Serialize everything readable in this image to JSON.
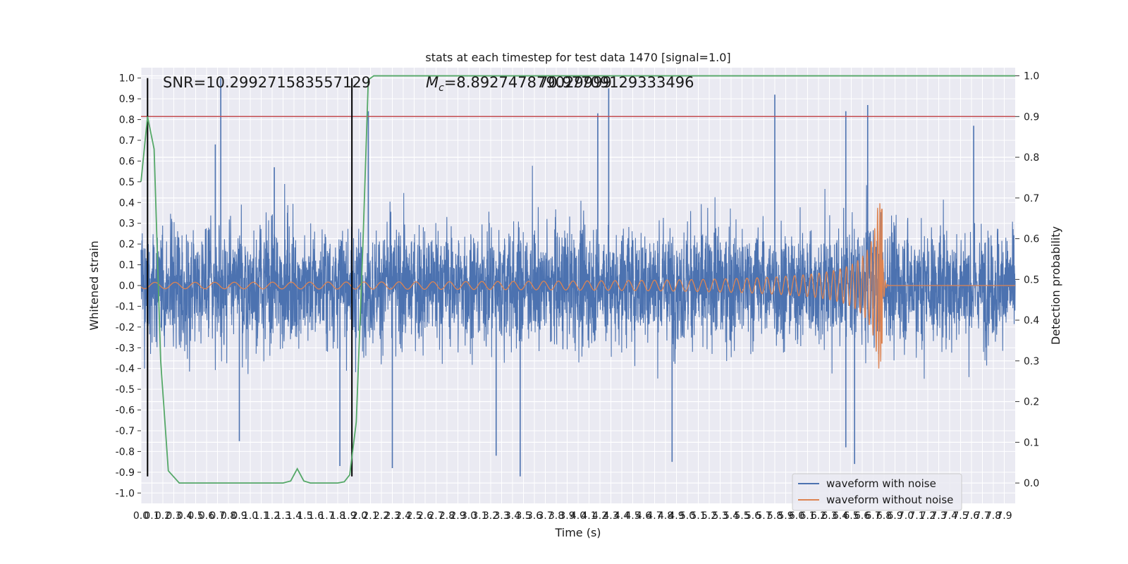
{
  "chart_data": {
    "type": "line",
    "title": "stats at each timestep for test data 1470 [signal=1.0]",
    "xlabel": "Time (s)",
    "ylabel": "Whitened strain",
    "y2label": "Detection probability",
    "xlim": [
      0.0,
      8.0
    ],
    "ylim": [
      -1.05,
      1.05
    ],
    "y2lim": [
      -0.05,
      1.02
    ],
    "grid": true,
    "legend_position": "lower-right",
    "xticks": [
      "0.0",
      "0.1",
      "0.2",
      "0.3",
      "0.4",
      "0.5",
      "0.6",
      "0.7",
      "0.8",
      "0.9",
      "1.0",
      "1.1",
      "1.2",
      "1.3",
      "1.4",
      "1.5",
      "1.6",
      "1.7",
      "1.8",
      "1.9",
      "2.0",
      "2.1",
      "2.2",
      "2.3",
      "2.4",
      "2.5",
      "2.6",
      "2.7",
      "2.8",
      "2.9",
      "3.0",
      "3.1",
      "3.2",
      "3.3",
      "3.4",
      "3.5",
      "3.6",
      "3.7",
      "3.8",
      "3.9",
      "4.0",
      "4.1",
      "4.2",
      "4.3",
      "4.4",
      "4.5",
      "4.6",
      "4.7",
      "4.8",
      "4.9",
      "5.0",
      "5.1",
      "5.2",
      "5.3",
      "5.4",
      "5.5",
      "5.6",
      "5.7",
      "5.8",
      "5.9",
      "6.0",
      "6.1",
      "6.2",
      "6.3",
      "6.4",
      "6.5",
      "6.6",
      "6.7",
      "6.8",
      "6.9",
      "7.0",
      "7.1",
      "7.2",
      "7.3",
      "7.4",
      "7.5",
      "7.6",
      "7.7",
      "7.8",
      "7.9"
    ],
    "yticks": [
      "-1.0",
      "-0.9",
      "-0.8",
      "-0.7",
      "-0.6",
      "-0.5",
      "-0.4",
      "-0.3",
      "-0.2",
      "-0.1",
      "0.0",
      "0.1",
      "0.2",
      "0.3",
      "0.4",
      "0.5",
      "0.6",
      "0.7",
      "0.8",
      "0.9",
      "1.0"
    ],
    "y2ticks": [
      "0.0",
      "0.1",
      "0.2",
      "0.3",
      "0.4",
      "0.5",
      "0.6",
      "0.7",
      "0.8",
      "0.9",
      "1.0"
    ],
    "annotations": {
      "snr": "SNR=10.299271583557129",
      "mc_symbol": "M",
      "mc_sub": "c",
      "mc_value": "=8.892747879029999",
      "overlap": "70.97709129333496"
    },
    "colors": {
      "noise": "#4c72b0",
      "clean": "#dd8452",
      "probability": "#55a868",
      "threshold": "#c44e52",
      "marker": "#000000",
      "background": "#eaeaf2",
      "grid": "#ffffff"
    },
    "series": [
      {
        "name": "waveform with noise",
        "kind": "noise",
        "sigma": 0.2,
        "spikes": [
          {
            "x": 0.73,
            "y": 1.0
          },
          {
            "x": 4.28,
            "y": 0.95
          },
          {
            "x": 5.8,
            "y": 0.92
          },
          {
            "x": 6.65,
            "y": 0.87
          },
          {
            "x": 6.45,
            "y": 0.84
          },
          {
            "x": 4.18,
            "y": 0.83
          },
          {
            "x": 2.08,
            "y": 0.84
          },
          {
            "x": 1.22,
            "y": 0.57
          },
          {
            "x": 0.68,
            "y": 0.68
          },
          {
            "x": 7.62,
            "y": 0.77
          },
          {
            "x": 1.82,
            "y": -0.87
          },
          {
            "x": 3.47,
            "y": -0.92
          },
          {
            "x": 6.53,
            "y": -0.86
          },
          {
            "x": 2.3,
            "y": -0.88
          },
          {
            "x": 6.45,
            "y": -0.78
          },
          {
            "x": 4.86,
            "y": -0.85
          },
          {
            "x": 3.25,
            "y": -0.82
          },
          {
            "x": 0.9,
            "y": -0.75
          }
        ]
      },
      {
        "name": "waveform without noise",
        "kind": "chirp",
        "merger_time": 6.78,
        "peak_amplitude": 0.37,
        "trough_amplitude": -0.28,
        "start_amplitude": 0.013
      },
      {
        "name": "detection probability",
        "axis": "right",
        "x": [
          0.0,
          0.06,
          0.12,
          0.18,
          0.25,
          0.35,
          0.5,
          1.0,
          1.3,
          1.37,
          1.43,
          1.49,
          1.55,
          1.65,
          1.8,
          1.86,
          1.91,
          1.97,
          2.03,
          2.08,
          2.13,
          8.0
        ],
        "y": [
          0.74,
          0.9,
          0.82,
          0.3,
          0.03,
          0.0,
          0.0,
          0.0,
          0.0,
          0.005,
          0.035,
          0.005,
          0.0,
          0.0,
          0.0,
          0.003,
          0.02,
          0.15,
          0.58,
          0.99,
          1.0,
          1.0
        ]
      }
    ],
    "threshold": 0.9,
    "vertical_lines": [
      0.06,
      1.93
    ],
    "vline_span_y": [
      -0.92,
      1.0
    ]
  }
}
